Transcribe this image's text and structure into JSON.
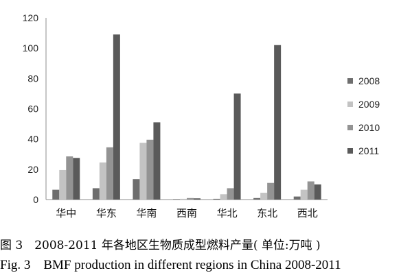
{
  "chart_data": {
    "type": "bar",
    "categories": [
      "华中",
      "华东",
      "华南",
      "西南",
      "华北",
      "东北",
      "西北"
    ],
    "series": [
      {
        "name": "2008",
        "color": "#6e6e6e",
        "values": [
          6.5,
          7.5,
          13.5,
          0.3,
          0.5,
          1.0,
          2.0
        ]
      },
      {
        "name": "2009",
        "color": "#c3c3c3",
        "values": [
          19.5,
          24.5,
          37.5,
          0.5,
          3.5,
          4.5,
          6.5
        ]
      },
      {
        "name": "2010",
        "color": "#939393",
        "values": [
          28.5,
          34.5,
          39.5,
          1.0,
          7.5,
          11.0,
          12.0
        ]
      },
      {
        "name": "2011",
        "color": "#5a5a5a",
        "values": [
          27.5,
          109.0,
          51.0,
          0.8,
          70.0,
          102.0,
          10.0
        ]
      }
    ],
    "yticks": [
      0,
      20,
      40,
      60,
      80,
      100,
      120
    ],
    "ylim": [
      0,
      120
    ],
    "legend": "right",
    "grid": false
  },
  "caption": {
    "cn": "图 3　2008-2011 年各地区生物质成型燃料产量( 单位:万吨 )",
    "en": "Fig. 3　BMF production in different regions in China 2008-2011"
  }
}
